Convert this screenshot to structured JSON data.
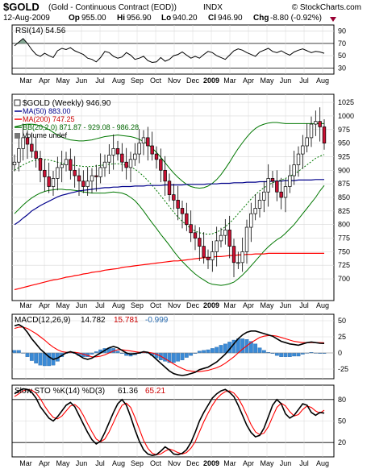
{
  "header": {
    "symbol": "$GOLD",
    "description": "(Gold - Continuous Contract (EOD))",
    "exchange": "INDX",
    "brand": "© StockCharts.com",
    "date": "12-Aug-2009",
    "open_label": "Op",
    "open": "955.00",
    "high_label": "Hi",
    "high": "956.90",
    "low_label": "Lo",
    "low": "940.20",
    "close_label": "Cl",
    "close": "946.90",
    "change_label": "Chg",
    "change": "-8.80 (-0.92%)"
  },
  "colors": {
    "up": "#00aa00",
    "down": "#cc0000",
    "candle_up": "#ffffff",
    "candle_down": "#cc1133",
    "ma50": "#00008b",
    "ma200": "#ff0000",
    "bb": "#007700",
    "macd_line": "#000000",
    "macd_signal": "#ff0000",
    "macd_hist": "#3a8ad6",
    "sto_k": "#000000",
    "sto_d": "#ff0000",
    "rsi": "#000000",
    "rsi_fill": "#7aa08a",
    "grid": "#d8d8d8"
  },
  "chart_data": [
    {
      "type": "line",
      "panel": "rsi",
      "legend": "RSI(14) 54.56",
      "ylim": [
        20,
        100
      ],
      "y_ticks": [
        "90",
        "70",
        "50",
        "30"
      ],
      "series": [
        {
          "values": [
            66,
            72,
            78,
            70,
            60,
            52,
            49,
            54,
            50,
            47,
            58,
            62,
            60,
            63,
            58,
            55,
            52,
            46,
            44,
            40,
            47,
            57,
            55,
            49,
            46,
            48,
            55,
            51,
            44,
            46,
            49,
            42,
            39,
            40,
            47,
            41,
            44,
            50,
            52,
            56,
            51,
            46,
            49,
            46,
            52,
            57,
            55,
            50,
            47,
            44,
            51,
            58,
            61,
            59,
            55,
            52,
            49,
            56,
            59,
            62,
            57,
            55,
            58,
            54,
            51,
            56,
            59,
            61,
            58,
            55,
            57,
            56,
            54
          ]
        }
      ]
    },
    {
      "type": "candlestick",
      "panel": "price",
      "title": "$GOLD (Weekly) 946.90",
      "ylim": [
        660,
        1040
      ],
      "y_ticks": [
        "1025",
        "1000",
        "975",
        "950",
        "925",
        "900",
        "875",
        "850",
        "825",
        "800",
        "775",
        "750",
        "725",
        "700"
      ],
      "x_ticks": [
        "Mar",
        "Apr",
        "May",
        "Jun",
        "Jul",
        "Aug",
        "Sep",
        "Oct",
        "Nov",
        "Dec",
        "2009",
        "Mar",
        "Apr",
        "May",
        "Jun",
        "Jul",
        "Aug"
      ],
      "legend": [
        "$GOLD (Weekly) 946.90",
        "MA(50) 883.00",
        "MA(200) 747.25",
        "BB(20,2.0) 871.87 - 929.08 - 986.28",
        "Volume undef"
      ],
      "closes": [
        915,
        940,
        960,
        948,
        935,
        922,
        900,
        888,
        870,
        885,
        905,
        910,
        920,
        900,
        890,
        880,
        870,
        880,
        890,
        888,
        905,
        915,
        928,
        940,
        930,
        915,
        905,
        920,
        930,
        950,
        960,
        945,
        930,
        920,
        900,
        880,
        855,
        845,
        830,
        820,
        800,
        785,
        775,
        760,
        740,
        735,
        750,
        770,
        780,
        790,
        760,
        730,
        730,
        750,
        795,
        820,
        830,
        845,
        860,
        885,
        880,
        860,
        850,
        870,
        890,
        910,
        930,
        945,
        960,
        985,
        990,
        980,
        950
      ],
      "ma50": [
        800,
        805,
        812,
        818,
        825,
        830,
        835,
        839,
        843,
        847,
        851,
        854,
        856,
        858,
        860,
        862,
        863,
        864,
        865,
        866,
        867,
        868,
        868,
        869,
        869,
        870,
        870,
        870,
        871,
        871,
        871,
        872,
        872,
        872,
        872,
        873,
        873,
        873,
        873,
        873,
        874,
        874,
        874,
        874,
        874,
        875,
        875,
        875,
        876,
        876,
        876,
        877,
        877,
        877,
        878,
        878,
        878,
        879,
        879,
        879,
        880,
        880,
        880,
        881,
        881,
        881,
        882,
        882,
        882,
        882,
        883,
        883,
        883
      ],
      "ma200": [
        680,
        682,
        684,
        686,
        688,
        690,
        692,
        694,
        696,
        698,
        699,
        701,
        703,
        704,
        706,
        707,
        709,
        710,
        712,
        713,
        714,
        716,
        717,
        718,
        719,
        721,
        722,
        723,
        724,
        725,
        726,
        727,
        728,
        729,
        730,
        731,
        732,
        733,
        733,
        734,
        735,
        736,
        737,
        738,
        739,
        739,
        740,
        741,
        741,
        742,
        743,
        743,
        744,
        744,
        745,
        745,
        746,
        746,
        746,
        747,
        747,
        747,
        747,
        747,
        747,
        747,
        747,
        747,
        747,
        747,
        747,
        747,
        747
      ],
      "bb_mid": [
        900,
        905,
        910,
        914,
        917,
        919,
        920,
        920,
        919,
        917,
        915,
        913,
        911,
        910,
        909,
        908,
        907,
        907,
        907,
        908,
        909,
        910,
        911,
        912,
        912,
        911,
        909,
        906,
        902,
        896,
        889,
        881,
        872,
        863,
        853,
        843,
        833,
        823,
        814,
        806,
        799,
        793,
        788,
        785,
        783,
        782,
        783,
        786,
        790,
        796,
        803,
        811,
        820,
        829,
        838,
        847,
        855,
        862,
        868,
        873,
        877,
        880,
        882,
        885,
        889,
        893,
        898,
        904,
        910,
        916,
        922,
        926,
        929
      ],
      "bb_upper": [
        980,
        982,
        984,
        985,
        985,
        984,
        982,
        979,
        975,
        970,
        965,
        961,
        958,
        956,
        955,
        954,
        954,
        955,
        956,
        958,
        960,
        962,
        963,
        964,
        965,
        964,
        963,
        962,
        960,
        957,
        953,
        948,
        941,
        933,
        924,
        914,
        904,
        895,
        887,
        880,
        874,
        870,
        868,
        867,
        868,
        871,
        876,
        883,
        892,
        903,
        915,
        928,
        940,
        951,
        961,
        970,
        977,
        982,
        985,
        987,
        988,
        988,
        987,
        986,
        986,
        986,
        986,
        986,
        986,
        986,
        986,
        986,
        986
      ],
      "bb_lower": [
        820,
        828,
        836,
        843,
        849,
        854,
        858,
        861,
        863,
        864,
        865,
        865,
        864,
        864,
        863,
        862,
        860,
        859,
        858,
        858,
        858,
        858,
        859,
        860,
        859,
        858,
        855,
        850,
        844,
        835,
        825,
        814,
        803,
        793,
        782,
        772,
        762,
        751,
        741,
        732,
        724,
        716,
        709,
        703,
        698,
        693,
        690,
        689,
        688,
        689,
        691,
        694,
        700,
        707,
        715,
        724,
        733,
        742,
        751,
        759,
        766,
        772,
        777,
        784,
        792,
        800,
        810,
        820,
        830,
        840,
        850,
        862,
        872
      ]
    },
    {
      "type": "line",
      "panel": "macd",
      "legend_prefix": "MACD(12,26,9)",
      "macd": "14.782",
      "signal": "15.781",
      "histogram": "-0.999",
      "ylim": [
        -40,
        60
      ],
      "y_ticks": [
        "50",
        "25",
        "0",
        "-25"
      ],
      "series": [
        {
          "name": "MACD",
          "values": [
            42,
            44,
            40,
            32,
            22,
            14,
            6,
            0,
            -6,
            -10,
            -8,
            -4,
            0,
            2,
            0,
            -4,
            -8,
            -10,
            -8,
            -4,
            0,
            4,
            8,
            10,
            8,
            4,
            0,
            -2,
            -1,
            0,
            2,
            1,
            -4,
            -10,
            -16,
            -22,
            -28,
            -32,
            -34,
            -35,
            -34,
            -32,
            -30,
            -26,
            -24,
            -22,
            -18,
            -14,
            -8,
            -2,
            6,
            14,
            22,
            28,
            32,
            34,
            34,
            32,
            30,
            28,
            26,
            22,
            18,
            16,
            14,
            13,
            12,
            14,
            16,
            17,
            16,
            15,
            14.8
          ]
        },
        {
          "name": "Signal",
          "values": [
            38,
            40,
            40,
            38,
            34,
            30,
            25,
            20,
            14,
            9,
            5,
            2,
            1,
            1,
            1,
            0,
            -2,
            -4,
            -6,
            -6,
            -5,
            -3,
            0,
            3,
            5,
            5,
            4,
            3,
            2,
            1,
            1,
            1,
            0,
            -2,
            -5,
            -9,
            -13,
            -17,
            -21,
            -24,
            -27,
            -28,
            -29,
            -29,
            -28,
            -27,
            -25,
            -23,
            -20,
            -16,
            -11,
            -6,
            0,
            6,
            11,
            16,
            20,
            24,
            26,
            27,
            27,
            26,
            24,
            22,
            20,
            18,
            17,
            16,
            16,
            16,
            16,
            16,
            15.8
          ]
        }
      ]
    },
    {
      "type": "line",
      "panel": "sto",
      "legend_prefix": "Slow STO %K(14) %D(3)",
      "k_value": "61.36",
      "d_value": "65.21",
      "ylim": [
        0,
        100
      ],
      "y_ticks": [
        "80",
        "50",
        "20"
      ],
      "series": [
        {
          "name": "%K",
          "values": [
            88,
            92,
            95,
            94,
            90,
            82,
            70,
            62,
            54,
            50,
            56,
            64,
            72,
            76,
            70,
            58,
            46,
            34,
            24,
            18,
            22,
            34,
            48,
            62,
            74,
            80,
            72,
            56,
            38,
            22,
            10,
            4,
            2,
            3,
            8,
            14,
            10,
            4,
            3,
            5,
            10,
            20,
            34,
            50,
            62,
            72,
            82,
            88,
            92,
            94,
            90,
            84,
            72,
            58,
            44,
            34,
            28,
            30,
            40,
            56,
            72,
            80,
            74,
            60,
            54,
            58,
            66,
            74,
            72,
            62,
            58,
            62,
            61
          ]
        },
        {
          "name": "%D",
          "values": [
            84,
            88,
            92,
            94,
            93,
            89,
            81,
            71,
            62,
            55,
            53,
            57,
            64,
            71,
            73,
            68,
            58,
            46,
            35,
            25,
            21,
            25,
            35,
            48,
            61,
            72,
            75,
            69,
            55,
            39,
            23,
            12,
            5,
            3,
            4,
            8,
            11,
            9,
            6,
            4,
            6,
            12,
            21,
            35,
            49,
            61,
            72,
            81,
            87,
            91,
            92,
            89,
            82,
            71,
            58,
            45,
            35,
            31,
            33,
            42,
            56,
            69,
            75,
            71,
            63,
            57,
            59,
            66,
            71,
            69,
            64,
            61,
            65
          ]
        }
      ]
    }
  ]
}
